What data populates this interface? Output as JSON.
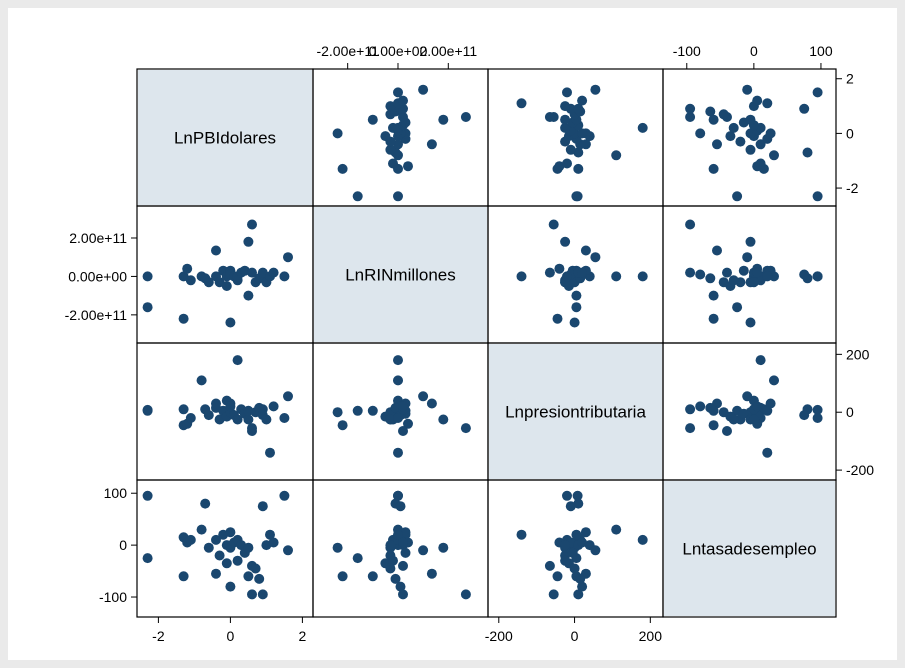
{
  "colors": {
    "outer_background": "#eaeaea",
    "plot_background": "#ffffff",
    "diagonal_fill": "#dde6ed",
    "marker": "#1a476f",
    "frame": "#000000"
  },
  "chart_data": {
    "type": "scatter-matrix",
    "grid": false,
    "marker": "filled-circle",
    "variables": [
      {
        "name": "LnPBIdolares",
        "range": [
          -2.4,
          2.1
        ],
        "ticks": [
          -2,
          0,
          2
        ],
        "tick_labels": [
          "-2",
          "0",
          "2"
        ],
        "tick_axes": [
          "bottom",
          "right"
        ]
      },
      {
        "name": "LnRINmillones",
        "range": [
          -310000000000.0,
          330000000000.0
        ],
        "ticks": [
          -200000000000.0,
          0,
          200000000000.0
        ],
        "tick_labels": [
          "-2.00e+11",
          "0.00e+00",
          "2.00e+11"
        ],
        "tick_axes": [
          "top",
          "left"
        ]
      },
      {
        "name": "Lnpresiontributaria",
        "range": [
          -210,
          215
        ],
        "ticks": [
          -200,
          0,
          200
        ],
        "tick_labels": [
          "-200",
          "0",
          "200"
        ],
        "tick_axes": [
          "bottom",
          "right"
        ]
      },
      {
        "name": "Lntasadesempleo",
        "range": [
          -125,
          112
        ],
        "ticks": [
          -100,
          0,
          100
        ],
        "tick_labels": [
          "-100",
          "0",
          "100"
        ],
        "tick_axes": [
          "top",
          "left"
        ]
      }
    ],
    "observations": [
      [
        -2.3,
        -160000000000.0,
        5,
        -25
      ],
      [
        -2.3,
        0.0,
        8,
        95
      ],
      [
        -1.3,
        -220000000000.0,
        -45,
        -60
      ],
      [
        -1.3,
        0.0,
        10,
        15
      ],
      [
        -1.2,
        40000000000.0,
        -40,
        5
      ],
      [
        -1.1,
        -20000000000.0,
        -20,
        10
      ],
      [
        -0.8,
        0.0,
        110,
        30
      ],
      [
        -0.7,
        -10000000000.0,
        10,
        80
      ],
      [
        -0.6,
        -30000000000.0,
        -10,
        -5
      ],
      [
        -0.4,
        0.0,
        15,
        10
      ],
      [
        -0.4,
        135000000000.0,
        30,
        -55
      ],
      [
        -0.3,
        -30000000000.0,
        -25,
        -20
      ],
      [
        -0.2,
        30000000000.0,
        5,
        20
      ],
      [
        -0.1,
        0.0,
        40,
        0
      ],
      [
        -0.1,
        -50000000000.0,
        -15,
        -35
      ],
      [
        0.0,
        -240000000000.0,
        0,
        -5
      ],
      [
        0.0,
        30000000000.0,
        30,
        25
      ],
      [
        0.0,
        10000000000.0,
        20,
        -80
      ],
      [
        0.1,
        0.0,
        -10,
        5
      ],
      [
        0.2,
        -20000000000.0,
        -25,
        -30
      ],
      [
        0.2,
        0.0,
        180,
        10
      ],
      [
        0.3,
        20000000000.0,
        10,
        0
      ],
      [
        0.4,
        30000000000.0,
        -5,
        -15
      ],
      [
        0.5,
        180000000000.0,
        -25,
        -5
      ],
      [
        0.5,
        -100000000000.0,
        5,
        -60
      ],
      [
        0.6,
        20000000000.0,
        -65,
        -40
      ],
      [
        0.6,
        270000000000.0,
        -55,
        -95
      ],
      [
        0.7,
        -30000000000.0,
        0,
        -45
      ],
      [
        0.8,
        -10000000000.0,
        15,
        -65
      ],
      [
        0.9,
        10000000000.0,
        -10,
        75
      ],
      [
        0.9,
        20000000000.0,
        10,
        -95
      ],
      [
        1.0,
        -30000000000.0,
        -25,
        0
      ],
      [
        1.1,
        0.0,
        -140,
        20
      ],
      [
        1.2,
        20000000000.0,
        20,
        5
      ],
      [
        1.5,
        0.0,
        -20,
        95
      ],
      [
        1.6,
        100000000000.0,
        55,
        -10
      ]
    ]
  }
}
